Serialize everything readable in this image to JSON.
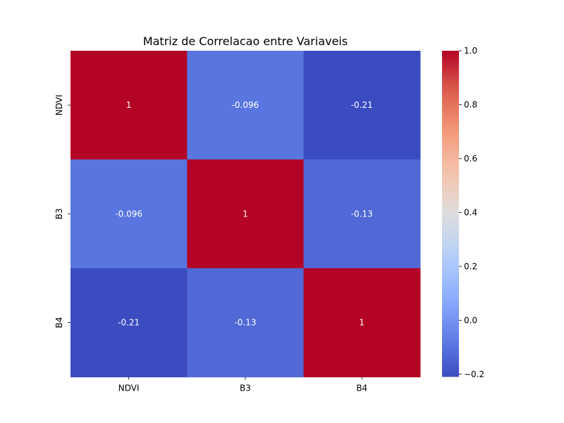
{
  "chart_data": {
    "type": "heatmap",
    "title": "Matriz de Correlacao entre Variaveis",
    "rows": [
      "NDVI",
      "B3",
      "B4"
    ],
    "columns": [
      "NDVI",
      "B3",
      "B4"
    ],
    "values": [
      [
        1,
        -0.096,
        -0.21
      ],
      [
        -0.096,
        1,
        -0.13
      ],
      [
        -0.21,
        -0.13,
        1
      ]
    ],
    "cell_labels": [
      [
        "1",
        "-0.096",
        "-0.21"
      ],
      [
        "-0.096",
        "1",
        "-0.13"
      ],
      [
        "-0.21",
        "-0.13",
        "1"
      ]
    ],
    "colorbar": {
      "colormap": "coolwarm",
      "range": [
        -0.21,
        1.0
      ],
      "ticks": [
        -0.2,
        0.0,
        0.2,
        0.4,
        0.6,
        0.8,
        1.0
      ],
      "tick_labels": [
        "−0.2",
        "0.0",
        "0.2",
        "0.4",
        "0.6",
        "0.8",
        "1.0"
      ]
    }
  }
}
